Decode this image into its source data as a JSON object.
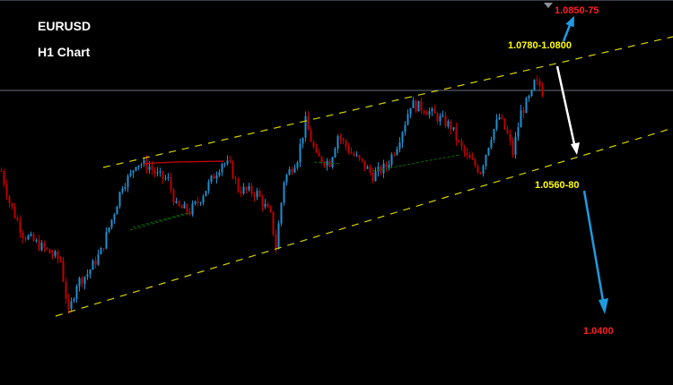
{
  "chart_data": {
    "type": "candlestick",
    "symbol": "EURUSD",
    "timeframe": "H1 Chart",
    "grid": false,
    "colors": {
      "up": "#1e90d0",
      "down": "#c00000",
      "channel": "#d4d400",
      "target_up": "#ff2020",
      "level": "#ffff00",
      "arrow_blue": "#1e9be0",
      "arrow_white": "#ffffff",
      "price_line": "#6a7080"
    },
    "price_path": [
      [
        0,
        1.056
      ],
      [
        3,
        1.0492
      ],
      [
        8,
        1.0423
      ],
      [
        15,
        1.0394
      ],
      [
        22,
        1.0365
      ],
      [
        24,
        1.0287
      ],
      [
        25,
        1.0248
      ],
      [
        28,
        1.0316
      ],
      [
        32,
        1.0336
      ],
      [
        37,
        1.0384
      ],
      [
        42,
        1.0472
      ],
      [
        45,
        1.0531
      ],
      [
        48,
        1.055
      ],
      [
        50,
        1.0579
      ],
      [
        55,
        1.057
      ],
      [
        58,
        1.055
      ],
      [
        62,
        1.054
      ],
      [
        65,
        1.0482
      ],
      [
        70,
        1.0472
      ],
      [
        73,
        1.0492
      ],
      [
        78,
        1.054
      ],
      [
        82,
        1.0579
      ],
      [
        85,
        1.057
      ],
      [
        88,
        1.0521
      ],
      [
        95,
        1.0511
      ],
      [
        100,
        1.0462
      ],
      [
        102,
        1.0394
      ],
      [
        105,
        1.054
      ],
      [
        110,
        1.0589
      ],
      [
        113,
        1.0667
      ],
      [
        117,
        1.0589
      ],
      [
        122,
        1.0579
      ],
      [
        125,
        1.0638
      ],
      [
        130,
        1.0599
      ],
      [
        135,
        1.057
      ],
      [
        138,
        1.055
      ],
      [
        143,
        1.057
      ],
      [
        147,
        1.0618
      ],
      [
        150,
        1.0667
      ],
      [
        152,
        1.0706
      ],
      [
        157,
        1.0696
      ],
      [
        162,
        1.0677
      ],
      [
        167,
        1.0657
      ],
      [
        170,
        1.0618
      ],
      [
        173,
        1.0589
      ],
      [
        178,
        1.056
      ],
      [
        182,
        1.0638
      ],
      [
        185,
        1.0677
      ],
      [
        188,
        1.0638
      ],
      [
        190,
        1.0599
      ],
      [
        193,
        1.0687
      ],
      [
        197,
        1.0726
      ],
      [
        198,
        1.0751
      ],
      [
        200,
        1.0745
      ],
      [
        202,
        1.072
      ]
    ],
    "current_price_line": 1.0735,
    "annotations": {
      "target_high": "1.0850-75",
      "resistance": "1.0780-1.0800",
      "support": "1.0560-80",
      "target_low": "1.0400"
    }
  }
}
